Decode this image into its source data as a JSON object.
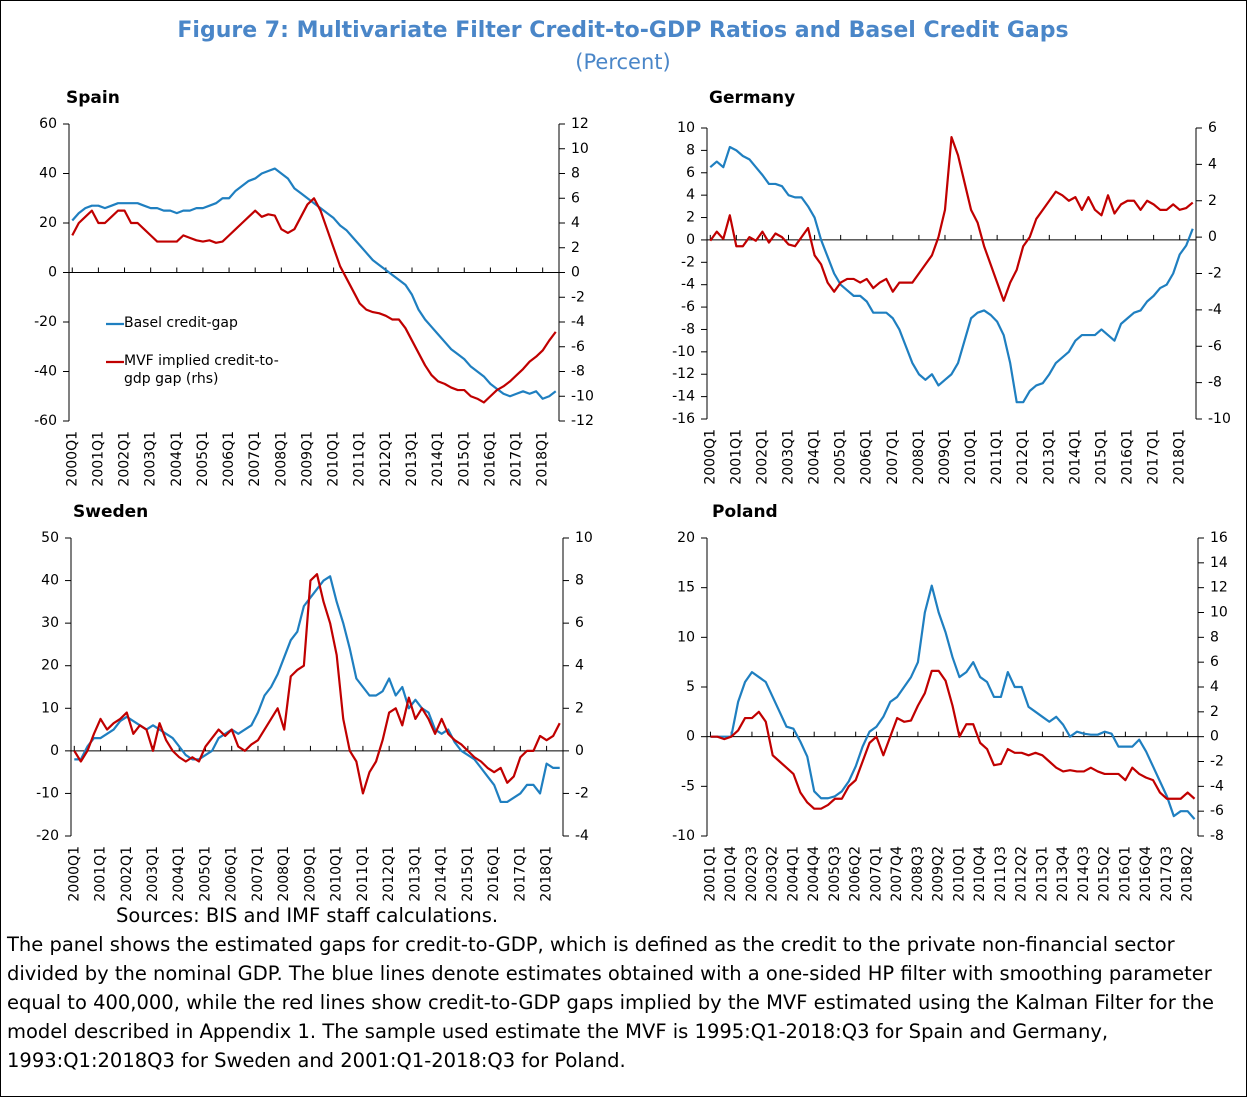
{
  "figure": {
    "title": "Figure 7: Multivariate Filter Credit-to-GDP Ratios and Basel Credit Gaps",
    "subtitle": "(Percent)"
  },
  "notes": [
    "Sources: BIS and IMF staff calculations.",
    "The panel shows the estimated gaps for credit-to-GDP, which is defined as the credit to the private non-financial sector divided by the nominal GDP. The blue lines denote estimates obtained with a one-sided HP filter with smoothing parameter equal to 400,000, while the red lines show credit-to-GDP gaps implied by the MVF estimated using the Kalman Filter for the model described in Appendix 1. The sample used estimate the MVF is 1995:Q1-2018:Q3 for Spain and Germany, 1993:Q1:2018Q3 for Sweden and 2001:Q1-2018:Q3 for Poland."
  ],
  "chart_data": [
    {
      "type": "line",
      "title": "Spain",
      "legend": "center left",
      "categories": [
        "2000Q1",
        null,
        null,
        null,
        "2001Q1",
        null,
        null,
        null,
        "2002Q1",
        null,
        null,
        null,
        "2003Q1",
        null,
        null,
        null,
        "2004Q1",
        null,
        null,
        null,
        "2005Q1",
        null,
        null,
        null,
        "2006Q1",
        null,
        null,
        null,
        "2007Q1",
        null,
        null,
        null,
        "2008Q1",
        null,
        null,
        null,
        "2009Q1",
        null,
        null,
        null,
        "2010Q1",
        null,
        null,
        null,
        "2011Q1",
        null,
        null,
        null,
        "2012Q1",
        null,
        null,
        null,
        "2013Q1",
        null,
        null,
        null,
        "2014Q1",
        null,
        null,
        null,
        "2015Q1",
        null,
        null,
        null,
        "2016Q1",
        null,
        null,
        null,
        "2017Q1",
        null,
        null,
        null,
        "2018Q1",
        null,
        null
      ],
      "series": [
        {
          "name": "Basel credit-gap",
          "color": "#1f7fc0",
          "values": [
            21,
            24,
            26,
            27,
            27,
            26,
            27,
            28,
            28,
            28,
            28,
            27,
            26,
            26,
            25,
            25,
            24,
            25,
            25,
            26,
            26,
            27,
            28,
            30,
            30,
            33,
            35,
            37,
            38,
            40,
            41,
            42,
            40,
            38,
            34,
            32,
            30,
            28,
            26,
            24,
            22,
            19,
            17,
            14,
            11,
            8,
            5,
            3,
            1,
            -1,
            -3,
            -5,
            -9,
            -15,
            -19,
            -22,
            -25,
            -28,
            -31,
            -33,
            -35,
            -38,
            -40,
            -42,
            -45,
            -47,
            -49,
            -50,
            -49,
            -48,
            -49,
            -48,
            -51,
            -50,
            -48
          ]
        },
        {
          "name": "MVF implied credit-to-gdp gap (rhs)",
          "color": "#c00000",
          "axis": "y2",
          "values": [
            3,
            4,
            4.5,
            5,
            4,
            4,
            4.5,
            5,
            5,
            4,
            4,
            3.5,
            3,
            2.5,
            2.5,
            2.5,
            2.5,
            3,
            2.8,
            2.6,
            2.5,
            2.6,
            2.4,
            2.5,
            3,
            3.5,
            4,
            4.5,
            5,
            4.5,
            4.7,
            4.6,
            3.5,
            3.2,
            3.5,
            4.5,
            5.5,
            6,
            5,
            3.5,
            2,
            0.5,
            -0.5,
            -1.5,
            -2.5,
            -3,
            -3.2,
            -3.3,
            -3.5,
            -3.8,
            -3.8,
            -4.5,
            -5.5,
            -6.5,
            -7.5,
            -8.3,
            -8.8,
            -9,
            -9.3,
            -9.5,
            -9.5,
            -10,
            -10.2,
            -10.5,
            -10,
            -9.5,
            -9.2,
            -8.8,
            -8.3,
            -7.8,
            -7.2,
            -6.8,
            -6.3,
            -5.5,
            -4.8
          ]
        }
      ],
      "ylim": [
        -60,
        60
      ],
      "yticks": [
        -60,
        -40,
        -20,
        0,
        20,
        40,
        60
      ],
      "y2lim": [
        -12,
        12
      ],
      "y2ticks": [
        -12,
        -10,
        -8,
        -6,
        -4,
        -2,
        0,
        2,
        4,
        6,
        8,
        10,
        12
      ]
    },
    {
      "type": "line",
      "title": "Germany",
      "categories": [
        "2000Q1",
        null,
        null,
        null,
        "2001Q1",
        null,
        null,
        null,
        "2002Q1",
        null,
        null,
        null,
        "2003Q1",
        null,
        null,
        null,
        "2004Q1",
        null,
        null,
        null,
        "2005Q1",
        null,
        null,
        null,
        "2006Q1",
        null,
        null,
        null,
        "2007Q1",
        null,
        null,
        null,
        "2008Q1",
        null,
        null,
        null,
        "2009Q1",
        null,
        null,
        null,
        "2010Q1",
        null,
        null,
        null,
        "2011Q1",
        null,
        null,
        null,
        "2012Q1",
        null,
        null,
        null,
        "2013Q1",
        null,
        null,
        null,
        "2014Q1",
        null,
        null,
        null,
        "2015Q1",
        null,
        null,
        null,
        "2016Q1",
        null,
        null,
        null,
        "2017Q1",
        null,
        null,
        null,
        "2018Q1",
        null,
        null
      ],
      "series": [
        {
          "color": "#1f7fc0",
          "values": [
            6.5,
            7,
            6.5,
            8.3,
            8,
            7.5,
            7.2,
            6.5,
            5.8,
            5,
            5,
            4.8,
            4,
            3.8,
            3.8,
            3,
            2,
            0,
            -1.5,
            -3,
            -4,
            -4.5,
            -5,
            -5,
            -5.5,
            -6.5,
            -6.5,
            -6.5,
            -7,
            -8,
            -9.5,
            -11,
            -12,
            -12.5,
            -12,
            -13,
            -12.5,
            -12,
            -11,
            -9,
            -7,
            -6.5,
            -6.3,
            -6.7,
            -7.3,
            -8.5,
            -11,
            -14.5,
            -14.5,
            -13.5,
            -13,
            -12.8,
            -12,
            -11,
            -10.5,
            -10,
            -9,
            -8.5,
            -8.5,
            -8.5,
            -8,
            -8.5,
            -9,
            -7.5,
            -7,
            -6.5,
            -6.3,
            -5.5,
            -5,
            -4.3,
            -4,
            -3,
            -1.3,
            -0.5,
            1
          ]
        },
        {
          "color": "#c00000",
          "axis": "y2",
          "values": [
            -0.2,
            0.3,
            -0.1,
            1.2,
            -0.5,
            -0.5,
            0,
            -0.2,
            0.3,
            -0.3,
            0.2,
            0,
            -0.4,
            -0.5,
            0,
            0.5,
            -1,
            -1.5,
            -2.5,
            -3,
            -2.5,
            -2.3,
            -2.3,
            -2.5,
            -2.3,
            -2.8,
            -2.5,
            -2.3,
            -3,
            -2.5,
            -2.5,
            -2.5,
            -2,
            -1.5,
            -1,
            0,
            1.5,
            5.5,
            4.5,
            3,
            1.5,
            0.8,
            -0.5,
            -1.5,
            -2.5,
            -3.5,
            -2.5,
            -1.8,
            -0.5,
            0,
            1,
            1.5,
            2,
            2.5,
            2.3,
            2,
            2.2,
            1.5,
            2.2,
            1.5,
            1.2,
            2.3,
            1.3,
            1.8,
            2,
            2,
            1.5,
            2,
            1.8,
            1.5,
            1.5,
            1.8,
            1.5,
            1.6,
            1.9
          ]
        }
      ],
      "ylim": [
        -16,
        10
      ],
      "yticks": [
        -16,
        -14,
        -12,
        -10,
        -8,
        -6,
        -4,
        -2,
        0,
        2,
        4,
        6,
        8,
        10
      ],
      "y2lim": [
        -10,
        6
      ],
      "y2ticks": [
        -10,
        -8,
        -6,
        -4,
        -2,
        0,
        2,
        4,
        6
      ]
    },
    {
      "type": "line",
      "title": "Sweden",
      "categories": [
        "2000Q1",
        null,
        null,
        null,
        "2001Q1",
        null,
        null,
        null,
        "2002Q1",
        null,
        null,
        null,
        "2003Q1",
        null,
        null,
        null,
        "2004Q1",
        null,
        null,
        null,
        "2005Q1",
        null,
        null,
        null,
        "2006Q1",
        null,
        null,
        null,
        "2007Q1",
        null,
        null,
        null,
        "2008Q1",
        null,
        null,
        null,
        "2009Q1",
        null,
        null,
        null,
        "2010Q1",
        null,
        null,
        null,
        "2011Q1",
        null,
        null,
        null,
        "2012Q1",
        null,
        null,
        null,
        "2013Q1",
        null,
        null,
        null,
        "2014Q1",
        null,
        null,
        null,
        "2015Q1",
        null,
        null,
        null,
        "2016Q1",
        null,
        null,
        null,
        "2017Q1",
        null,
        null,
        null,
        "2018Q1",
        null,
        null
      ],
      "series": [
        {
          "color": "#1f7fc0",
          "values": [
            -2,
            -2,
            1,
            3,
            3,
            4,
            5,
            7,
            8,
            7,
            6,
            5,
            6,
            5,
            4,
            3,
            1,
            -1,
            -2,
            -2,
            -1,
            0,
            3,
            4,
            5,
            4,
            5,
            6,
            9,
            13,
            15,
            18,
            22,
            26,
            28,
            34,
            36,
            38,
            40,
            41,
            35,
            30,
            24,
            17,
            15,
            13,
            13,
            14,
            17,
            13,
            15,
            10,
            12,
            10,
            9,
            5,
            4,
            5,
            2,
            0,
            -1,
            -2,
            -4,
            -6,
            -8,
            -12,
            -12,
            -11,
            -10,
            -8,
            -8,
            -10,
            -3,
            -4,
            -4
          ]
        },
        {
          "color": "#c00000",
          "axis": "y2",
          "values": [
            0,
            -0.5,
            0,
            0.8,
            1.5,
            1,
            1.3,
            1.5,
            1.8,
            0.8,
            1.2,
            1,
            0,
            1.3,
            0.5,
            0,
            -0.3,
            -0.5,
            -0.3,
            -0.5,
            0.2,
            0.6,
            1,
            0.7,
            1,
            0.2,
            0,
            0.3,
            0.5,
            1,
            1.5,
            2,
            1,
            3.5,
            3.8,
            4,
            8,
            8.3,
            7,
            6,
            4.5,
            1.5,
            0,
            -0.5,
            -2,
            -1,
            -0.5,
            0.5,
            1.8,
            2,
            1.2,
            2.5,
            1.5,
            2,
            1.5,
            0.8,
            1.5,
            0.8,
            0.5,
            0.3,
            0,
            -0.3,
            -0.5,
            -0.8,
            -1,
            -0.8,
            -1.5,
            -1.2,
            -0.3,
            0,
            0,
            0.7,
            0.5,
            0.7,
            1.3
          ]
        }
      ],
      "ylim": [
        -20,
        50
      ],
      "yticks": [
        -20,
        -10,
        0,
        10,
        20,
        30,
        40,
        50
      ],
      "y2lim": [
        -4,
        10
      ],
      "y2ticks": [
        -4,
        -2,
        0,
        2,
        4,
        6,
        8,
        10
      ]
    },
    {
      "type": "line",
      "title": "Poland",
      "categories": [
        "2001Q1",
        null,
        null,
        "2001Q4",
        null,
        null,
        "2002Q3",
        null,
        null,
        "2003Q2",
        null,
        null,
        "2004Q1",
        null,
        null,
        "2004Q4",
        null,
        null,
        "2005Q3",
        null,
        null,
        "2006Q2",
        null,
        null,
        "2007Q1",
        null,
        null,
        "2007Q4",
        null,
        null,
        "2008Q3",
        null,
        null,
        "2009Q2",
        null,
        null,
        "2010Q1",
        null,
        null,
        "2010Q4",
        null,
        null,
        "2011Q3",
        null,
        null,
        "2012Q2",
        null,
        null,
        "2013Q1",
        null,
        null,
        "2013Q4",
        null,
        null,
        "2014Q3",
        null,
        null,
        "2015Q2",
        null,
        null,
        "2016Q1",
        null,
        null,
        "2016Q4",
        null,
        null,
        "2017Q3",
        null,
        null,
        "2018Q2",
        null
      ],
      "series": [
        {
          "color": "#1f7fc0",
          "values": [
            0,
            0,
            0,
            0,
            3.5,
            5.5,
            6.5,
            6,
            5.5,
            4,
            2.5,
            1,
            0.8,
            -0.5,
            -2,
            -5.5,
            -6.2,
            -6.2,
            -6,
            -5.5,
            -4.5,
            -3,
            -1,
            0.5,
            1,
            2,
            3.5,
            4,
            5,
            6,
            7.5,
            12.5,
            15.2,
            12.5,
            10.5,
            8,
            6,
            6.5,
            7.5,
            6,
            5.5,
            4,
            4,
            6.5,
            5,
            5,
            3,
            2.5,
            2,
            1.5,
            2,
            1.2,
            0,
            0.5,
            0.3,
            0.2,
            0.2,
            0.5,
            0.3,
            -1,
            -1,
            -1,
            -0.3,
            -1.5,
            -3,
            -4.5,
            -6,
            -8,
            -7.5,
            -7.5,
            -8.3
          ]
        },
        {
          "color": "#c00000",
          "axis": "y2",
          "values": [
            0,
            0,
            -0.2,
            0,
            0.5,
            1.5,
            1.5,
            2,
            1.2,
            -1.5,
            -2,
            -2.5,
            -3,
            -4.5,
            -5.3,
            -5.8,
            -5.8,
            -5.5,
            -5,
            -5,
            -4,
            -3.5,
            -2,
            -0.5,
            0,
            -1.5,
            0,
            1.5,
            1.2,
            1.3,
            2.5,
            3.5,
            5.3,
            5.3,
            4.5,
            2.5,
            0,
            1,
            1,
            -0.5,
            -1,
            -2.3,
            -2.2,
            -1,
            -1.3,
            -1.3,
            -1.5,
            -1.3,
            -1.5,
            -2,
            -2.5,
            -2.8,
            -2.7,
            -2.8,
            -2.8,
            -2.5,
            -2.8,
            -3,
            -3,
            -3,
            -3.5,
            -2.5,
            -3,
            -3.3,
            -3.5,
            -4.5,
            -5,
            -5,
            -5,
            -4.5,
            -5
          ]
        }
      ],
      "ylim": [
        -10,
        20
      ],
      "yticks": [
        -10,
        -5,
        0,
        5,
        10,
        15,
        20
      ],
      "y2lim": [
        -8,
        16
      ],
      "y2ticks": [
        -8,
        -6,
        -4,
        -2,
        0,
        2,
        4,
        6,
        8,
        10,
        12,
        14,
        16
      ]
    }
  ]
}
